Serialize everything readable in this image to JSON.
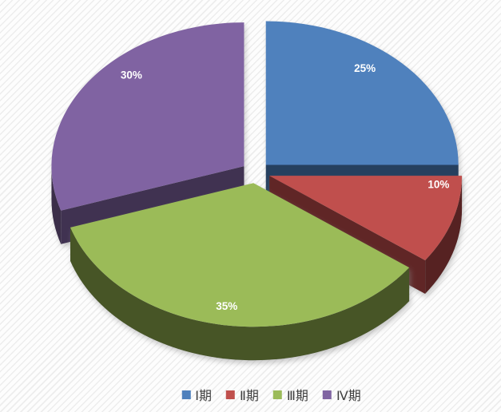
{
  "background": {
    "base_color": "#fdfdfd",
    "stripe_color": "#ededed"
  },
  "chart_data": {
    "type": "pie",
    "style": "3d-exploded-pie",
    "title": "",
    "direction": "clockwise",
    "start_angle_deg": 0,
    "legend_position": "bottom",
    "data_label_format": "percent",
    "label_text_color": "#ffffff",
    "categories": [
      "Ⅰ期",
      "Ⅱ期",
      "Ⅲ期",
      "Ⅳ期"
    ],
    "values": [
      25,
      10,
      35,
      30
    ],
    "slices": [
      {
        "label": "Ⅰ期",
        "value": 25,
        "display": "25%",
        "color": "#4f81bd"
      },
      {
        "label": "Ⅱ期",
        "value": 10,
        "display": "10%",
        "color": "#c0504d"
      },
      {
        "label": "Ⅲ期",
        "value": 35,
        "display": "35%",
        "color": "#9bbb59"
      },
      {
        "label": "Ⅳ期",
        "value": 30,
        "display": "30%",
        "color": "#8064a2"
      }
    ]
  }
}
